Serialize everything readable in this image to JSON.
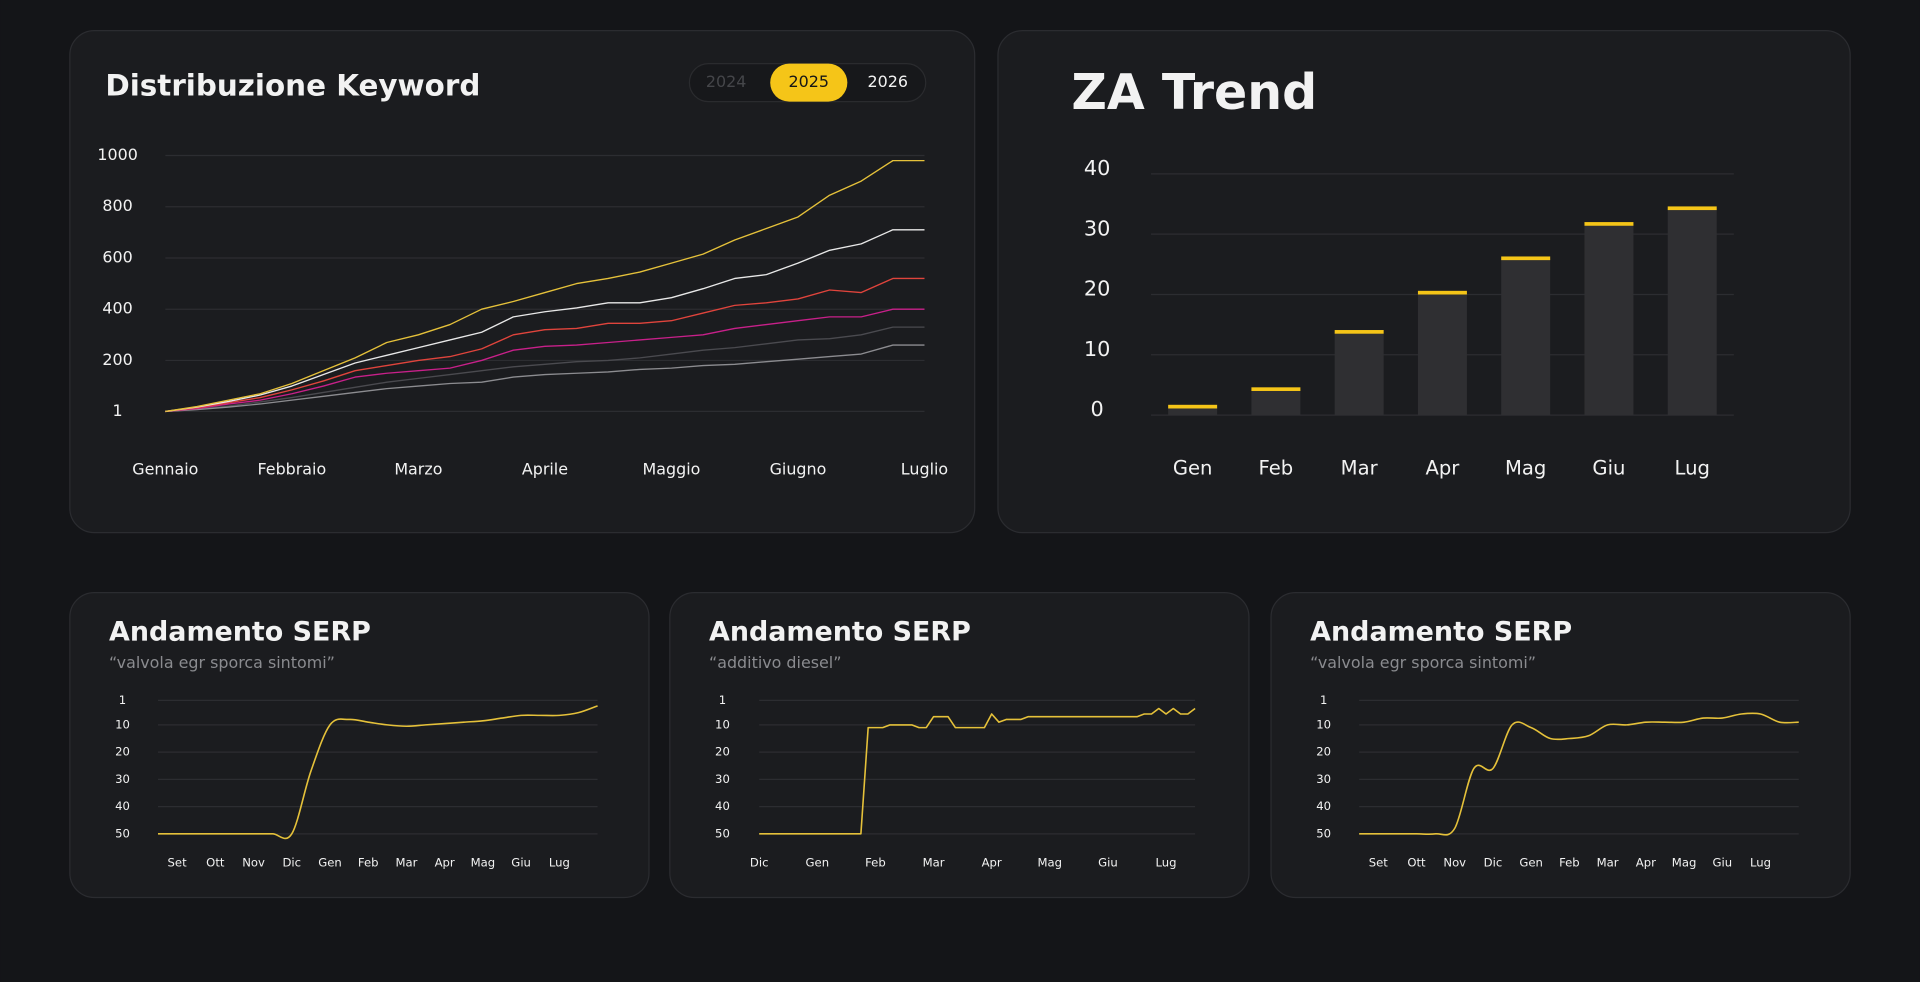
{
  "year_selector": {
    "options": [
      "2024",
      "2025",
      "2026"
    ],
    "selected": "2025"
  },
  "chart_data": [
    {
      "type": "line",
      "title": "Distribuzione Keyword",
      "curve": "linear",
      "categories": [
        "Gennaio",
        null,
        null,
        null,
        "Febbraio",
        null,
        null,
        null,
        "Marzo",
        null,
        null,
        null,
        "Aprile",
        null,
        null,
        null,
        "Maggio",
        null,
        null,
        null,
        "Giugno",
        null,
        null,
        null,
        "Luglio"
      ],
      "ylim": [
        1,
        1000
      ],
      "yticks": [
        1,
        200,
        400,
        600,
        800,
        1000
      ],
      "grid": true,
      "series": [
        {
          "color": "#4a4a4f",
          "values": [
            1,
            10,
            22,
            38,
            55,
            75,
            95,
            115,
            130,
            145,
            160,
            175,
            185,
            195,
            200,
            210,
            225,
            240,
            250,
            265,
            280,
            285,
            300,
            330,
            330
          ]
        },
        {
          "color": "#8c8c90",
          "values": [
            1,
            8,
            18,
            30,
            45,
            60,
            75,
            90,
            100,
            110,
            115,
            135,
            145,
            150,
            155,
            165,
            170,
            180,
            185,
            195,
            205,
            215,
            225,
            260,
            260
          ]
        },
        {
          "color": "#c8208a",
          "values": [
            1,
            12,
            30,
            45,
            70,
            100,
            135,
            150,
            160,
            170,
            200,
            240,
            255,
            260,
            270,
            280,
            290,
            300,
            325,
            340,
            355,
            370,
            370,
            400,
            400
          ]
        },
        {
          "color": "#e0443c",
          "values": [
            1,
            15,
            35,
            55,
            85,
            120,
            160,
            180,
            200,
            215,
            245,
            300,
            320,
            325,
            345,
            345,
            355,
            385,
            415,
            425,
            440,
            475,
            465,
            520,
            520
          ]
        },
        {
          "color": "#e8e8e8",
          "values": [
            1,
            18,
            40,
            65,
            100,
            145,
            190,
            220,
            250,
            280,
            310,
            370,
            390,
            405,
            425,
            425,
            445,
            480,
            520,
            535,
            580,
            630,
            655,
            710,
            710
          ]
        },
        {
          "color": "#e5c13a",
          "values": [
            1,
            20,
            45,
            70,
            110,
            160,
            210,
            270,
            300,
            340,
            400,
            430,
            465,
            500,
            520,
            545,
            580,
            615,
            670,
            715,
            760,
            845,
            900,
            980,
            980
          ]
        }
      ]
    },
    {
      "type": "bar",
      "title": "ZA Trend",
      "categories": [
        "Gen",
        "Feb",
        "Mar",
        "Apr",
        "Mag",
        "Giu",
        "Lug"
      ],
      "values": [
        1.4,
        4.3,
        13.8,
        20.3,
        26,
        31.7,
        34.3
      ],
      "color": "#2f2f32",
      "cap_color": "#f5c518",
      "ylim": [
        0,
        40
      ],
      "yticks": [
        0,
        10,
        20,
        30,
        40
      ],
      "grid": true
    },
    {
      "type": "line",
      "title": "Andamento SERP",
      "subtitle": "“valvola egr sporca sintomi”",
      "curve": "smooth",
      "categories": [
        null,
        "Set",
        null,
        "Ott",
        null,
        "Nov",
        null,
        "Dic",
        null,
        "Gen",
        null,
        "Feb",
        null,
        "Mar",
        null,
        "Apr",
        null,
        "Mag",
        null,
        "Giu",
        null,
        "Lug",
        null,
        null
      ],
      "ylim": [
        50,
        1
      ],
      "yticks": [
        1,
        10,
        20,
        30,
        40,
        50
      ],
      "grid": true,
      "series": [
        {
          "color": "#e5c13a",
          "values": [
            50,
            50,
            50,
            50,
            50,
            50,
            50,
            50,
            27,
            10,
            8,
            9,
            10,
            10.5,
            10,
            9.5,
            9,
            8.5,
            7.5,
            6.5,
            6.5,
            6.5,
            5.5,
            3
          ]
        }
      ]
    },
    {
      "type": "line",
      "title": "Andamento SERP",
      "subtitle": "“additivo diesel”",
      "curve": "linear",
      "categories": [
        "Dic",
        null,
        null,
        null,
        null,
        null,
        null,
        null,
        "Gen",
        null,
        null,
        null,
        null,
        null,
        null,
        null,
        "Feb",
        null,
        null,
        null,
        null,
        null,
        null,
        null,
        "Mar",
        null,
        null,
        null,
        null,
        null,
        null,
        null,
        "Apr",
        null,
        null,
        null,
        null,
        null,
        null,
        null,
        "Mag",
        null,
        null,
        null,
        null,
        null,
        null,
        null,
        "Giu",
        null,
        null,
        null,
        null,
        null,
        null,
        null,
        "Lug",
        null,
        null,
        null,
        null
      ],
      "ylim": [
        50,
        1
      ],
      "yticks": [
        1,
        10,
        20,
        30,
        40,
        50
      ],
      "grid": true,
      "series": [
        {
          "color": "#e5c13a",
          "values": [
            50,
            50,
            50,
            50,
            50,
            50,
            50,
            50,
            50,
            50,
            50,
            50,
            50,
            50,
            50,
            11,
            11,
            11,
            10,
            10,
            10,
            10,
            11,
            11,
            7,
            7,
            7,
            11,
            11,
            11,
            11,
            11,
            6,
            9,
            8,
            8,
            8,
            7,
            7,
            7,
            7,
            7,
            7,
            7,
            7,
            7,
            7,
            7,
            7,
            7,
            7,
            7,
            7,
            6,
            6,
            4,
            6,
            4,
            6,
            6,
            4
          ]
        }
      ]
    },
    {
      "type": "line",
      "title": "Andamento SERP",
      "subtitle": "“valvola egr sporca sintomi”",
      "curve": "smooth",
      "categories": [
        null,
        "Set",
        null,
        "Ott",
        null,
        "Nov",
        null,
        "Dic",
        null,
        "Gen",
        null,
        "Feb",
        null,
        "Mar",
        null,
        "Apr",
        null,
        "Mag",
        null,
        "Giu",
        null,
        "Lug",
        null,
        null
      ],
      "ylim": [
        50,
        1
      ],
      "yticks": [
        1,
        10,
        20,
        30,
        40,
        50
      ],
      "grid": true,
      "series": [
        {
          "color": "#e5c13a",
          "values": [
            50,
            50,
            50,
            50,
            50,
            48,
            26,
            26,
            10,
            11,
            15,
            15,
            14,
            10,
            10,
            9,
            9,
            9,
            7.5,
            7.5,
            6,
            6,
            9,
            9
          ]
        }
      ]
    }
  ]
}
